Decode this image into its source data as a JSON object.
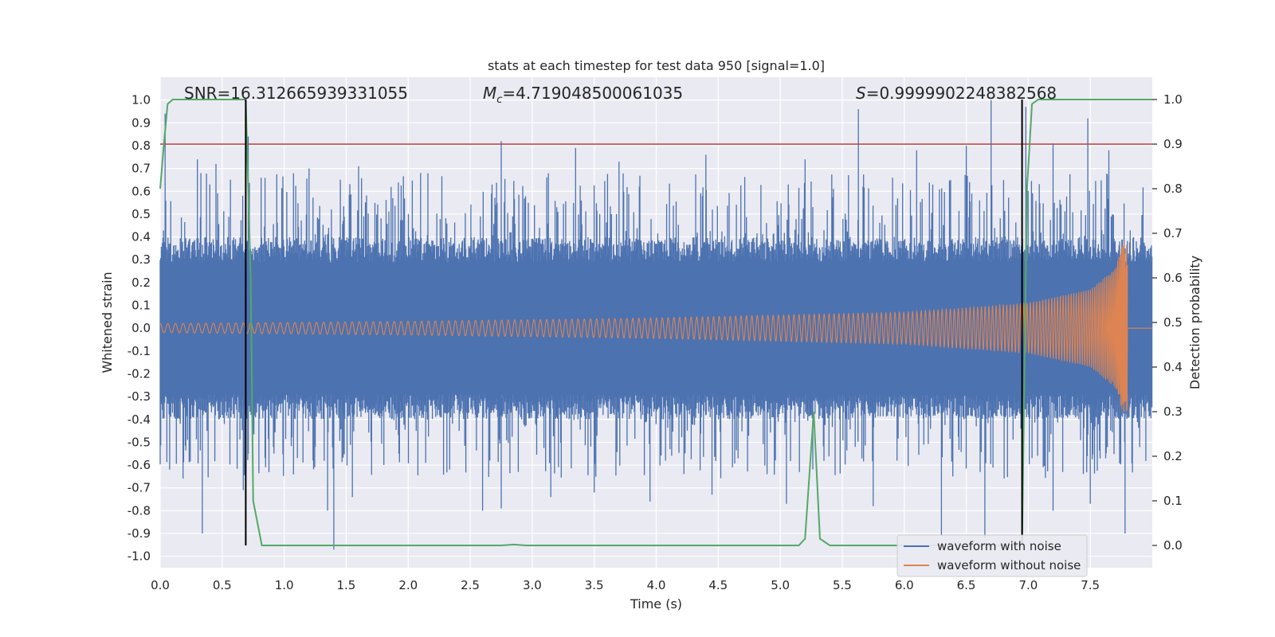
{
  "chart_data": {
    "type": "line",
    "title": "stats at each timestep for test data 950 [signal=1.0]",
    "xlabel": "Time (s)",
    "ylabel": "Whitened strain",
    "y2label": "Detection probability",
    "xlim": [
      0.0,
      8.0
    ],
    "ylim": [
      -1.05,
      1.1
    ],
    "y2lim": [
      -0.05,
      1.05
    ],
    "xticks": [
      "0.0",
      "0.5",
      "1.0",
      "1.5",
      "2.0",
      "2.5",
      "3.0",
      "3.5",
      "4.0",
      "4.5",
      "5.0",
      "5.5",
      "6.0",
      "6.5",
      "7.0",
      "7.5"
    ],
    "yticks": [
      "-1.0",
      "-0.9",
      "-0.8",
      "-0.7",
      "-0.6",
      "-0.5",
      "-0.4",
      "-0.3",
      "-0.2",
      "-0.1",
      "0.0",
      "0.1",
      "0.2",
      "0.3",
      "0.4",
      "0.5",
      "0.6",
      "0.7",
      "0.8",
      "0.9",
      "1.0"
    ],
    "y2ticks": [
      "0.0",
      "0.1",
      "0.2",
      "0.3",
      "0.4",
      "0.5",
      "0.6",
      "0.7",
      "0.8",
      "0.9",
      "1.0"
    ],
    "annotations": {
      "snr": "SNR=16.312665939331055",
      "mc_symbol": "M",
      "mc_sub": "c",
      "mc_value": "=4.719048500061035",
      "s_symbol": "S",
      "s_value": "=0.9999902248382568"
    },
    "threshold": {
      "axis": "right",
      "value": 0.9,
      "color": "#c03d3e"
    },
    "vertical_lines": {
      "x": [
        0.69,
        6.95
      ],
      "color": "#000000"
    },
    "noisy_waveform": {
      "name": "waveform with noise",
      "color": "#4c72b0",
      "t_range": [
        0.0,
        8.0
      ],
      "core_amplitude": 0.4,
      "spikes_positive": [
        [
          0.04,
          0.94
        ],
        [
          0.3,
          0.74
        ],
        [
          0.45,
          0.72
        ],
        [
          0.71,
          0.84
        ],
        [
          1.2,
          0.7
        ],
        [
          1.6,
          0.71
        ],
        [
          2.1,
          0.68
        ],
        [
          2.75,
          0.82
        ],
        [
          3.35,
          0.79
        ],
        [
          3.7,
          0.73
        ],
        [
          4.4,
          0.76
        ],
        [
          5.2,
          0.74
        ],
        [
          5.63,
          0.96
        ],
        [
          6.1,
          0.78
        ],
        [
          6.5,
          0.8
        ],
        [
          6.7,
          1.0
        ],
        [
          6.98,
          0.97
        ],
        [
          7.2,
          0.81
        ],
        [
          7.48,
          0.92
        ],
        [
          7.65,
          0.78
        ]
      ],
      "spikes_negative": [
        [
          0.34,
          -0.9
        ],
        [
          0.67,
          -0.71
        ],
        [
          1.35,
          -0.8
        ],
        [
          1.4,
          -0.97
        ],
        [
          1.55,
          -0.74
        ],
        [
          2.6,
          -0.8
        ],
        [
          2.75,
          -0.79
        ],
        [
          3.15,
          -0.74
        ],
        [
          3.5,
          -0.72
        ],
        [
          3.95,
          -0.76
        ],
        [
          4.45,
          -0.73
        ],
        [
          5.05,
          -0.77
        ],
        [
          5.75,
          -0.78
        ],
        [
          6.3,
          -0.91
        ],
        [
          6.65,
          -0.92
        ],
        [
          7.2,
          -0.8
        ],
        [
          7.5,
          -0.77
        ],
        [
          7.78,
          -0.9
        ]
      ]
    },
    "clean_waveform": {
      "name": "waveform without noise",
      "color": "#dd8452",
      "t_range": [
        0.0,
        7.8
      ],
      "envelope": [
        [
          0.0,
          0.02
        ],
        [
          2.0,
          0.03
        ],
        [
          4.0,
          0.045
        ],
        [
          6.0,
          0.07
        ],
        [
          7.0,
          0.11
        ],
        [
          7.5,
          0.17
        ],
        [
          7.7,
          0.26
        ],
        [
          7.78,
          0.4
        ]
      ],
      "peak_negative": -0.36
    },
    "detection_probability": {
      "axis": "right",
      "color": "#55a868",
      "points": [
        [
          0.0,
          0.8
        ],
        [
          0.03,
          0.9
        ],
        [
          0.06,
          0.99
        ],
        [
          0.1,
          1.0
        ],
        [
          0.69,
          1.0
        ],
        [
          0.73,
          0.6
        ],
        [
          0.75,
          0.1
        ],
        [
          0.82,
          0.0
        ],
        [
          2.75,
          0.0
        ],
        [
          2.85,
          0.002
        ],
        [
          2.95,
          0.0
        ],
        [
          5.15,
          0.0
        ],
        [
          5.2,
          0.015
        ],
        [
          5.27,
          0.3
        ],
        [
          5.32,
          0.015
        ],
        [
          5.4,
          0.0
        ],
        [
          6.95,
          0.0
        ],
        [
          6.99,
          0.8
        ],
        [
          7.03,
          0.99
        ],
        [
          7.08,
          1.0
        ],
        [
          8.0,
          1.0
        ]
      ]
    },
    "legend": {
      "position": "lower-right",
      "entries": [
        "waveform with noise",
        "waveform without noise"
      ]
    },
    "grid": true
  }
}
